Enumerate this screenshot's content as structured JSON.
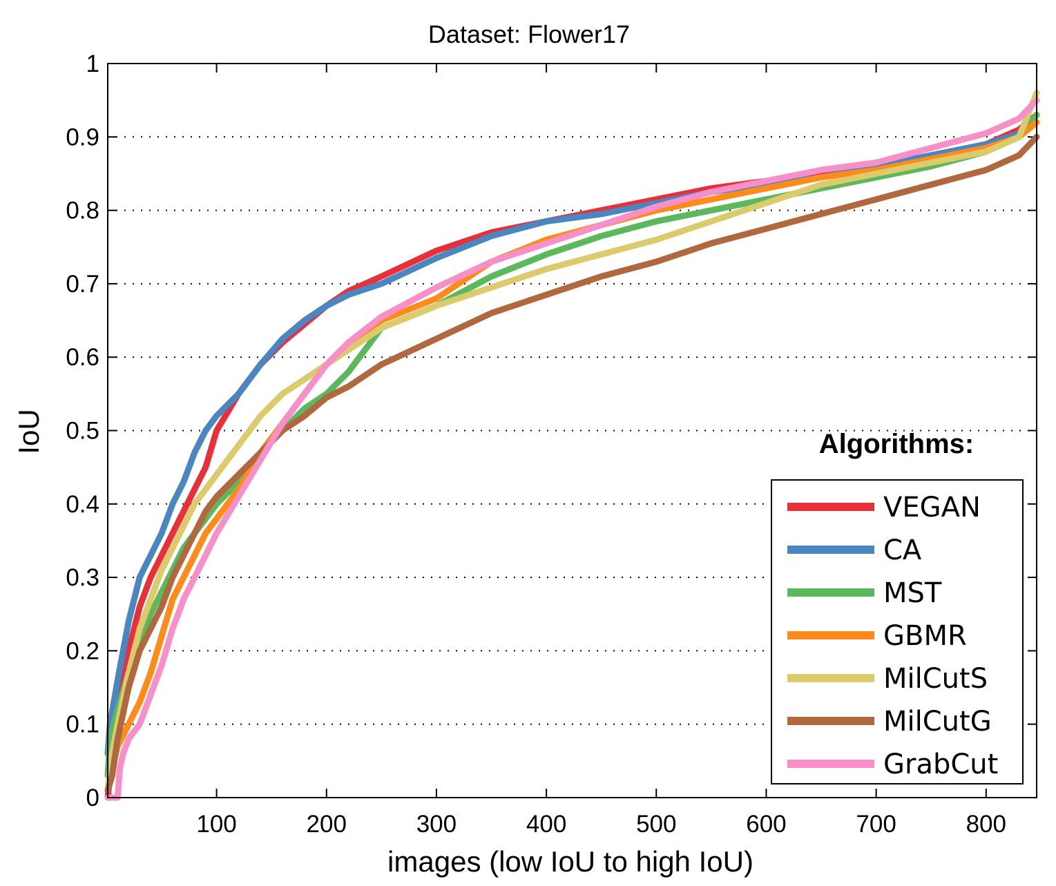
{
  "chart_data": {
    "type": "line",
    "title": "Dataset: Flower17",
    "xlabel": "images (low IoU to high IoU)",
    "ylabel": "IoU",
    "xlim": [
      1,
      846
    ],
    "ylim": [
      0,
      1
    ],
    "xticks": [
      100,
      200,
      300,
      400,
      500,
      600,
      700,
      800
    ],
    "yticks": [
      0,
      0.1,
      0.2,
      0.3,
      0.4,
      0.5,
      0.6,
      0.7,
      0.8,
      0.9,
      1
    ],
    "ytick_labels": [
      "0",
      "0.1",
      "0.2",
      "0.3",
      "0.4",
      "0.5",
      "0.6",
      "0.7",
      "0.8",
      "0.9",
      "1"
    ],
    "grid": "horizontal dotted",
    "legend_title": "Algorithms:",
    "legend_position": "bottom-right",
    "series": [
      {
        "name": "VEGAN",
        "color": "#e8303a",
        "x": [
          1,
          5,
          10,
          20,
          30,
          40,
          50,
          60,
          70,
          80,
          90,
          100,
          120,
          140,
          160,
          180,
          200,
          220,
          250,
          300,
          350,
          400,
          450,
          500,
          550,
          600,
          650,
          700,
          750,
          800,
          830,
          846
        ],
        "y": [
          0.0,
          0.06,
          0.13,
          0.2,
          0.26,
          0.3,
          0.33,
          0.36,
          0.39,
          0.42,
          0.45,
          0.5,
          0.55,
          0.59,
          0.62,
          0.645,
          0.67,
          0.69,
          0.71,
          0.745,
          0.77,
          0.785,
          0.8,
          0.815,
          0.83,
          0.84,
          0.85,
          0.86,
          0.875,
          0.89,
          0.91,
          0.93
        ]
      },
      {
        "name": "CA",
        "color": "#4a86c0",
        "x": [
          1,
          3,
          10,
          20,
          30,
          40,
          50,
          60,
          70,
          80,
          90,
          100,
          120,
          140,
          160,
          180,
          200,
          220,
          250,
          300,
          350,
          400,
          450,
          500,
          550,
          600,
          650,
          700,
          750,
          800,
          830,
          846
        ],
        "y": [
          0.06,
          0.1,
          0.16,
          0.24,
          0.3,
          0.33,
          0.36,
          0.4,
          0.43,
          0.47,
          0.5,
          0.52,
          0.55,
          0.59,
          0.625,
          0.65,
          0.67,
          0.685,
          0.7,
          0.735,
          0.765,
          0.785,
          0.795,
          0.81,
          0.825,
          0.835,
          0.845,
          0.86,
          0.875,
          0.89,
          0.905,
          0.93
        ]
      },
      {
        "name": "MST",
        "color": "#5cb85c",
        "x": [
          1,
          3,
          10,
          20,
          30,
          40,
          50,
          60,
          70,
          80,
          90,
          100,
          120,
          140,
          160,
          180,
          200,
          220,
          250,
          300,
          350,
          400,
          450,
          500,
          550,
          600,
          650,
          700,
          750,
          800,
          830,
          846
        ],
        "y": [
          0.03,
          0.08,
          0.12,
          0.17,
          0.21,
          0.25,
          0.28,
          0.31,
          0.34,
          0.36,
          0.38,
          0.4,
          0.43,
          0.47,
          0.5,
          0.53,
          0.55,
          0.58,
          0.64,
          0.67,
          0.71,
          0.74,
          0.765,
          0.785,
          0.8,
          0.815,
          0.83,
          0.845,
          0.86,
          0.88,
          0.9,
          0.93
        ]
      },
      {
        "name": "GBMR",
        "color": "#ff8c1a",
        "x": [
          1,
          5,
          10,
          20,
          30,
          40,
          50,
          60,
          70,
          80,
          90,
          100,
          120,
          140,
          160,
          180,
          200,
          220,
          250,
          300,
          350,
          400,
          450,
          500,
          550,
          600,
          650,
          700,
          750,
          800,
          830,
          846
        ],
        "y": [
          0.01,
          0.04,
          0.07,
          0.1,
          0.13,
          0.17,
          0.22,
          0.27,
          0.3,
          0.33,
          0.36,
          0.38,
          0.42,
          0.47,
          0.51,
          0.55,
          0.59,
          0.62,
          0.65,
          0.68,
          0.73,
          0.76,
          0.78,
          0.8,
          0.815,
          0.83,
          0.845,
          0.855,
          0.87,
          0.885,
          0.9,
          0.92
        ]
      },
      {
        "name": "MilCutS",
        "color": "#dccb6c",
        "x": [
          1,
          5,
          10,
          20,
          30,
          40,
          50,
          60,
          70,
          80,
          90,
          100,
          120,
          140,
          160,
          180,
          200,
          220,
          250,
          300,
          350,
          400,
          450,
          500,
          550,
          600,
          650,
          700,
          750,
          800,
          830,
          846
        ],
        "y": [
          0.01,
          0.06,
          0.1,
          0.17,
          0.23,
          0.27,
          0.31,
          0.34,
          0.37,
          0.4,
          0.42,
          0.44,
          0.48,
          0.52,
          0.55,
          0.57,
          0.59,
          0.61,
          0.64,
          0.67,
          0.695,
          0.72,
          0.74,
          0.76,
          0.785,
          0.81,
          0.835,
          0.85,
          0.865,
          0.88,
          0.9,
          0.96
        ]
      },
      {
        "name": "MilCutG",
        "color": "#b0693e",
        "x": [
          1,
          5,
          10,
          20,
          30,
          40,
          50,
          60,
          70,
          80,
          90,
          100,
          120,
          140,
          160,
          180,
          200,
          220,
          250,
          300,
          350,
          400,
          450,
          500,
          550,
          600,
          650,
          700,
          750,
          800,
          830,
          846
        ],
        "y": [
          0.01,
          0.03,
          0.08,
          0.15,
          0.2,
          0.23,
          0.26,
          0.3,
          0.33,
          0.36,
          0.39,
          0.41,
          0.44,
          0.47,
          0.5,
          0.52,
          0.545,
          0.56,
          0.59,
          0.625,
          0.66,
          0.685,
          0.71,
          0.73,
          0.755,
          0.775,
          0.795,
          0.815,
          0.835,
          0.855,
          0.875,
          0.9
        ]
      },
      {
        "name": "GrabCut",
        "color": "#f78fc8",
        "x": [
          1,
          5,
          10,
          12,
          15,
          20,
          30,
          40,
          50,
          60,
          70,
          80,
          90,
          100,
          120,
          140,
          160,
          180,
          200,
          220,
          250,
          300,
          350,
          400,
          450,
          500,
          550,
          600,
          650,
          700,
          750,
          800,
          830,
          846
        ],
        "y": [
          0.0,
          0.0,
          0.0,
          0.04,
          0.06,
          0.08,
          0.1,
          0.14,
          0.18,
          0.23,
          0.27,
          0.3,
          0.33,
          0.36,
          0.41,
          0.46,
          0.51,
          0.55,
          0.59,
          0.62,
          0.655,
          0.695,
          0.73,
          0.755,
          0.78,
          0.805,
          0.825,
          0.84,
          0.855,
          0.865,
          0.885,
          0.905,
          0.925,
          0.95
        ]
      }
    ]
  }
}
